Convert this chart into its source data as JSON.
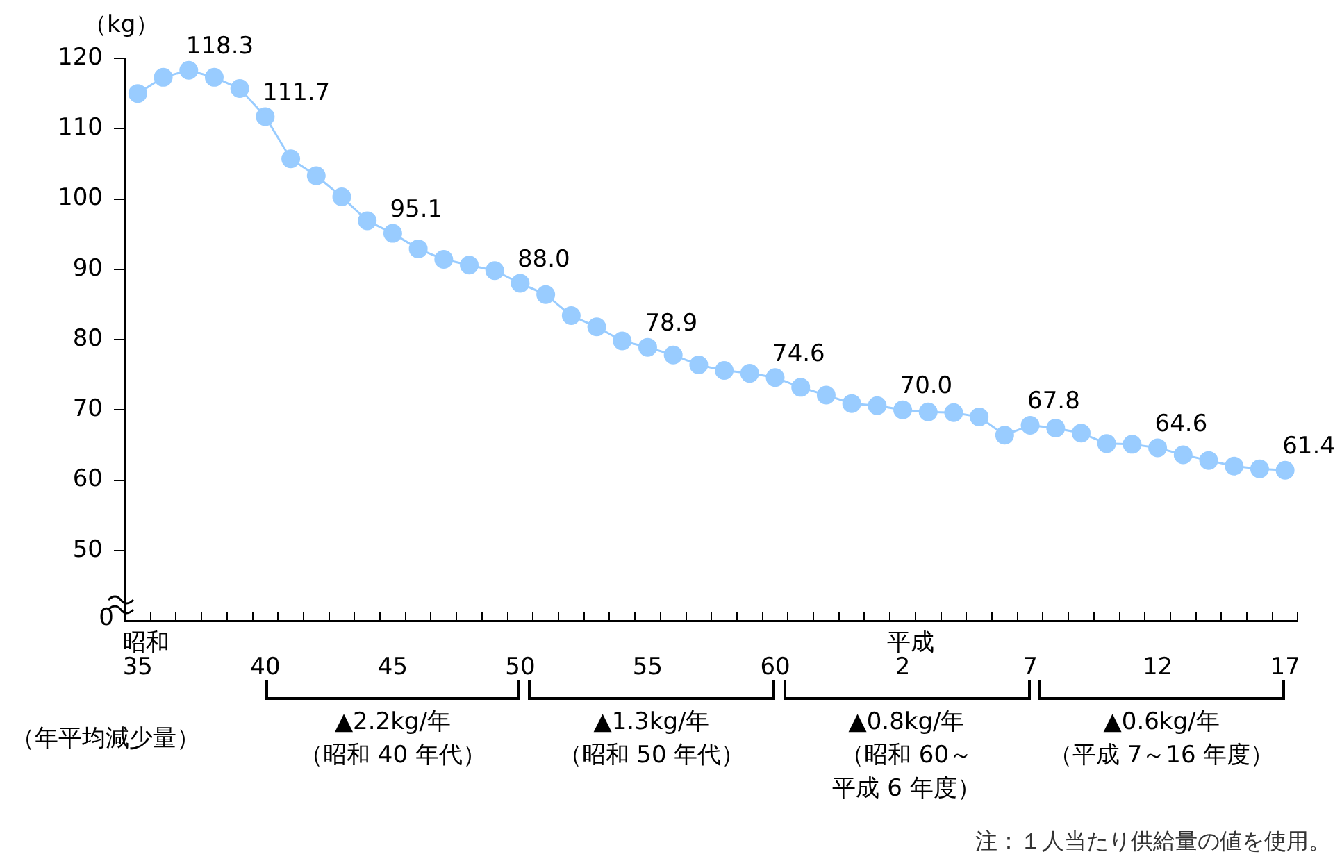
{
  "chart_data": {
    "type": "line",
    "ylabel": "（kg）",
    "categories": [
      "35",
      null,
      null,
      null,
      null,
      "40",
      null,
      null,
      null,
      null,
      "45",
      null,
      null,
      null,
      null,
      "50",
      null,
      null,
      null,
      null,
      "55",
      null,
      null,
      null,
      null,
      "60",
      null,
      null,
      null,
      null,
      "2",
      null,
      null,
      null,
      null,
      "7",
      null,
      null,
      null,
      null,
      "12",
      null,
      null,
      null,
      null,
      "17"
    ],
    "series": [
      {
        "color": "#99ccff",
        "values": [
          115.0,
          117.3,
          118.3,
          117.3,
          115.7,
          111.7,
          105.7,
          103.3,
          100.3,
          96.9,
          95.1,
          92.9,
          91.4,
          90.6,
          89.8,
          88.0,
          86.4,
          83.4,
          81.8,
          79.8,
          78.9,
          77.8,
          76.4,
          75.6,
          75.2,
          74.6,
          73.2,
          72.1,
          70.9,
          70.6,
          70.0,
          69.7,
          69.6,
          69.0,
          66.4,
          67.8,
          67.4,
          66.7,
          65.2,
          65.1,
          64.6,
          63.6,
          62.8,
          62.0,
          61.6,
          61.4
        ],
        "value_labels": [
          null,
          null,
          "118.3",
          null,
          null,
          "111.7",
          null,
          null,
          null,
          null,
          "95.1",
          null,
          null,
          null,
          null,
          "88.0",
          null,
          null,
          null,
          null,
          "78.9",
          null,
          null,
          null,
          null,
          "74.6",
          null,
          null,
          null,
          null,
          "70.0",
          null,
          null,
          null,
          null,
          "67.8",
          null,
          null,
          null,
          null,
          "64.6",
          null,
          null,
          null,
          null,
          "61.4"
        ]
      }
    ],
    "ylim": [
      40,
      120
    ],
    "yticks": [
      50,
      60,
      70,
      80,
      90,
      100,
      110,
      120
    ],
    "grid": false,
    "legend": false,
    "marker": "circle",
    "line_style": "solid",
    "annotations": [
      "昭和",
      "平成",
      "（年平均減少量）",
      "▲2.2kg/年",
      "（昭和 40 年代）",
      "▲1.3kg/年",
      "（昭和 50 年代）",
      "▲0.8kg/年",
      "（昭和 60～",
      "平成 6 年度）",
      "▲0.6kg/年",
      "（平成 7～16 年度）",
      "注：１人当たり供給量の値を使用。",
      "0"
    ]
  }
}
